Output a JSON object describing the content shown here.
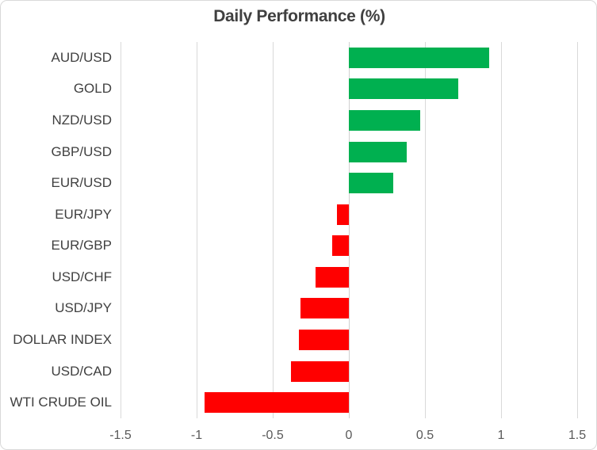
{
  "chart_data": {
    "type": "bar",
    "orientation": "horizontal",
    "title": "Daily Performance (%)",
    "categories": [
      "AUD/USD",
      "GOLD",
      "NZD/USD",
      "GBP/USD",
      "EUR/USD",
      "EUR/JPY",
      "EUR/GBP",
      "USD/CHF",
      "USD/JPY",
      "DOLLAR INDEX",
      "USD/CAD",
      "WTI CRUDE OIL"
    ],
    "values": [
      0.92,
      0.72,
      0.47,
      0.38,
      0.29,
      -0.08,
      -0.11,
      -0.22,
      -0.32,
      -0.33,
      -0.38,
      -0.95
    ],
    "xlabel": "",
    "ylabel": "",
    "xlim": [
      -1.5,
      1.5
    ],
    "x_tick_values": [
      -1.5,
      -1,
      -0.5,
      0,
      0.5,
      1,
      1.5
    ],
    "x_tick_labels": [
      "-1.5",
      "-1",
      "-0.5",
      "0",
      "0.5",
      "1",
      "1.5"
    ],
    "grid": "vertical-only",
    "legend": "none",
    "colors": {
      "positive": "#00B050",
      "negative": "#FF0000",
      "gridline": "#D9D9D9",
      "zero_line": "#D0D0D0",
      "title_text": "#404040",
      "category_text": "#404040",
      "tick_text": "#595959",
      "border": "#D9D9D9",
      "background": "#FFFFFF"
    }
  }
}
